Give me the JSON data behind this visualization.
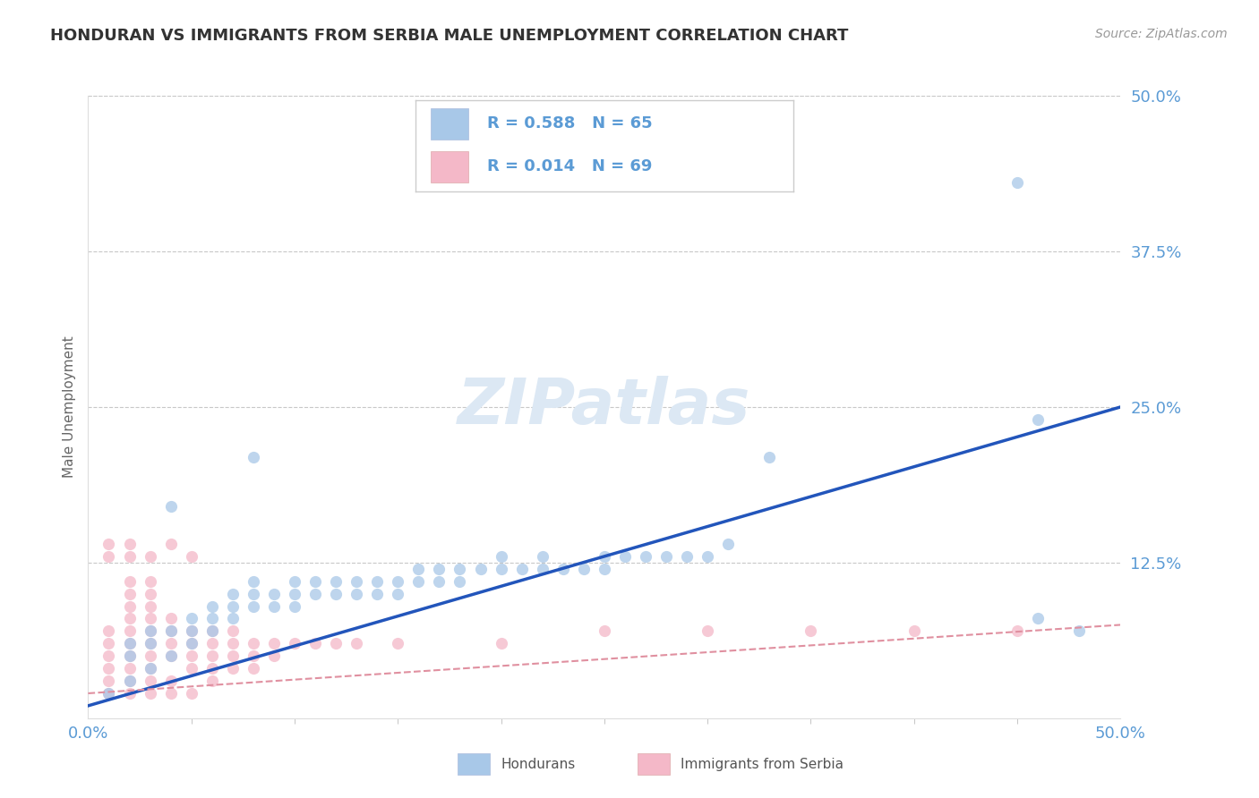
{
  "title": "HONDURAN VS IMMIGRANTS FROM SERBIA MALE UNEMPLOYMENT CORRELATION CHART",
  "source": "Source: ZipAtlas.com",
  "ylabel": "Male Unemployment",
  "xlim": [
    0.0,
    0.5
  ],
  "ylim": [
    0.0,
    0.5
  ],
  "ytick_values": [
    0.125,
    0.25,
    0.375,
    0.5
  ],
  "gridline_color": "#c8c8c8",
  "legend_r_hondurans": "R = 0.588",
  "legend_n_hondurans": "N = 65",
  "legend_r_serbia": "R = 0.014",
  "legend_n_serbia": "N = 69",
  "hondurans_color": "#a8c8e8",
  "serbia_color": "#f4b8c8",
  "line_hondurans_color": "#2255bb",
  "line_serbia_color": "#e090a0",
  "axis_label_color": "#5b9bd5",
  "title_color": "#333333",
  "watermark_color": "#dce8f4",
  "hondurans_scatter": [
    [
      0.01,
      0.02
    ],
    [
      0.02,
      0.03
    ],
    [
      0.02,
      0.05
    ],
    [
      0.02,
      0.06
    ],
    [
      0.03,
      0.04
    ],
    [
      0.03,
      0.06
    ],
    [
      0.03,
      0.07
    ],
    [
      0.04,
      0.05
    ],
    [
      0.04,
      0.07
    ],
    [
      0.05,
      0.06
    ],
    [
      0.05,
      0.07
    ],
    [
      0.05,
      0.08
    ],
    [
      0.06,
      0.07
    ],
    [
      0.06,
      0.08
    ],
    [
      0.06,
      0.09
    ],
    [
      0.07,
      0.08
    ],
    [
      0.07,
      0.09
    ],
    [
      0.07,
      0.1
    ],
    [
      0.08,
      0.09
    ],
    [
      0.08,
      0.1
    ],
    [
      0.08,
      0.11
    ],
    [
      0.09,
      0.09
    ],
    [
      0.09,
      0.1
    ],
    [
      0.1,
      0.09
    ],
    [
      0.1,
      0.1
    ],
    [
      0.1,
      0.11
    ],
    [
      0.11,
      0.1
    ],
    [
      0.11,
      0.11
    ],
    [
      0.12,
      0.1
    ],
    [
      0.12,
      0.11
    ],
    [
      0.13,
      0.1
    ],
    [
      0.13,
      0.11
    ],
    [
      0.14,
      0.1
    ],
    [
      0.14,
      0.11
    ],
    [
      0.15,
      0.1
    ],
    [
      0.15,
      0.11
    ],
    [
      0.16,
      0.11
    ],
    [
      0.16,
      0.12
    ],
    [
      0.17,
      0.11
    ],
    [
      0.17,
      0.12
    ],
    [
      0.18,
      0.11
    ],
    [
      0.18,
      0.12
    ],
    [
      0.19,
      0.12
    ],
    [
      0.2,
      0.12
    ],
    [
      0.2,
      0.13
    ],
    [
      0.21,
      0.12
    ],
    [
      0.22,
      0.12
    ],
    [
      0.22,
      0.13
    ],
    [
      0.23,
      0.12
    ],
    [
      0.24,
      0.12
    ],
    [
      0.25,
      0.12
    ],
    [
      0.25,
      0.13
    ],
    [
      0.26,
      0.13
    ],
    [
      0.27,
      0.13
    ],
    [
      0.28,
      0.13
    ],
    [
      0.29,
      0.13
    ],
    [
      0.3,
      0.13
    ],
    [
      0.31,
      0.14
    ],
    [
      0.33,
      0.21
    ],
    [
      0.04,
      0.17
    ],
    [
      0.08,
      0.21
    ],
    [
      0.46,
      0.24
    ],
    [
      0.46,
      0.08
    ],
    [
      0.45,
      0.43
    ],
    [
      0.48,
      0.07
    ]
  ],
  "serbia_scatter": [
    [
      0.01,
      0.02
    ],
    [
      0.01,
      0.03
    ],
    [
      0.01,
      0.04
    ],
    [
      0.01,
      0.05
    ],
    [
      0.01,
      0.06
    ],
    [
      0.01,
      0.07
    ],
    [
      0.01,
      0.13
    ],
    [
      0.02,
      0.02
    ],
    [
      0.02,
      0.03
    ],
    [
      0.02,
      0.04
    ],
    [
      0.02,
      0.05
    ],
    [
      0.02,
      0.06
    ],
    [
      0.02,
      0.07
    ],
    [
      0.02,
      0.08
    ],
    [
      0.02,
      0.09
    ],
    [
      0.02,
      0.1
    ],
    [
      0.02,
      0.13
    ],
    [
      0.03,
      0.02
    ],
    [
      0.03,
      0.03
    ],
    [
      0.03,
      0.04
    ],
    [
      0.03,
      0.05
    ],
    [
      0.03,
      0.06
    ],
    [
      0.03,
      0.07
    ],
    [
      0.03,
      0.08
    ],
    [
      0.03,
      0.09
    ],
    [
      0.04,
      0.02
    ],
    [
      0.04,
      0.03
    ],
    [
      0.04,
      0.05
    ],
    [
      0.04,
      0.06
    ],
    [
      0.04,
      0.07
    ],
    [
      0.05,
      0.02
    ],
    [
      0.05,
      0.04
    ],
    [
      0.05,
      0.05
    ],
    [
      0.05,
      0.06
    ],
    [
      0.05,
      0.07
    ],
    [
      0.06,
      0.03
    ],
    [
      0.06,
      0.05
    ],
    [
      0.06,
      0.06
    ],
    [
      0.06,
      0.07
    ],
    [
      0.07,
      0.05
    ],
    [
      0.07,
      0.06
    ],
    [
      0.07,
      0.07
    ],
    [
      0.08,
      0.05
    ],
    [
      0.08,
      0.06
    ],
    [
      0.09,
      0.05
    ],
    [
      0.09,
      0.06
    ],
    [
      0.1,
      0.06
    ],
    [
      0.11,
      0.06
    ],
    [
      0.12,
      0.06
    ],
    [
      0.13,
      0.06
    ],
    [
      0.15,
      0.06
    ],
    [
      0.2,
      0.06
    ],
    [
      0.25,
      0.07
    ],
    [
      0.3,
      0.07
    ],
    [
      0.35,
      0.07
    ],
    [
      0.4,
      0.07
    ],
    [
      0.45,
      0.07
    ],
    [
      0.01,
      0.14
    ],
    [
      0.02,
      0.14
    ],
    [
      0.02,
      0.11
    ],
    [
      0.03,
      0.1
    ],
    [
      0.03,
      0.11
    ],
    [
      0.04,
      0.08
    ],
    [
      0.05,
      0.13
    ],
    [
      0.06,
      0.04
    ],
    [
      0.07,
      0.04
    ],
    [
      0.08,
      0.04
    ],
    [
      0.03,
      0.13
    ],
    [
      0.04,
      0.14
    ]
  ]
}
